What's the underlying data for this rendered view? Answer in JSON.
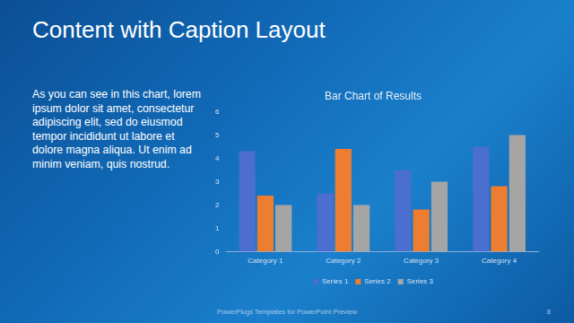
{
  "slide": {
    "title": "Content with Caption Layout",
    "caption": "As you can see in this chart, lorem ipsum dolor sit amet, consectetur adipiscing elit, sed do eiusmod tempor incididunt ut labore et dolore magna aliqua. Ut enim ad minim veniam, quis nostrud.",
    "footer": "PowerPlugs Templates for PowerPoint Preview",
    "page_number": "8"
  },
  "chart_data": {
    "type": "bar",
    "title": "Bar Chart of Results",
    "categories": [
      "Category 1",
      "Category 2",
      "Category 3",
      "Category 4"
    ],
    "series": [
      {
        "name": "Series 1",
        "color": "#4a6fd1",
        "values": [
          4.3,
          2.5,
          3.5,
          4.5
        ]
      },
      {
        "name": "Series 2",
        "color": "#ed7d31",
        "values": [
          2.4,
          4.4,
          1.8,
          2.8
        ]
      },
      {
        "name": "Series 3",
        "color": "#a5a5a5",
        "values": [
          2,
          2,
          3,
          5
        ]
      }
    ],
    "ylim": [
      0,
      6
    ],
    "yticks": [
      0,
      1,
      2,
      3,
      4,
      5,
      6
    ],
    "grid": false,
    "legend": "bottom"
  }
}
